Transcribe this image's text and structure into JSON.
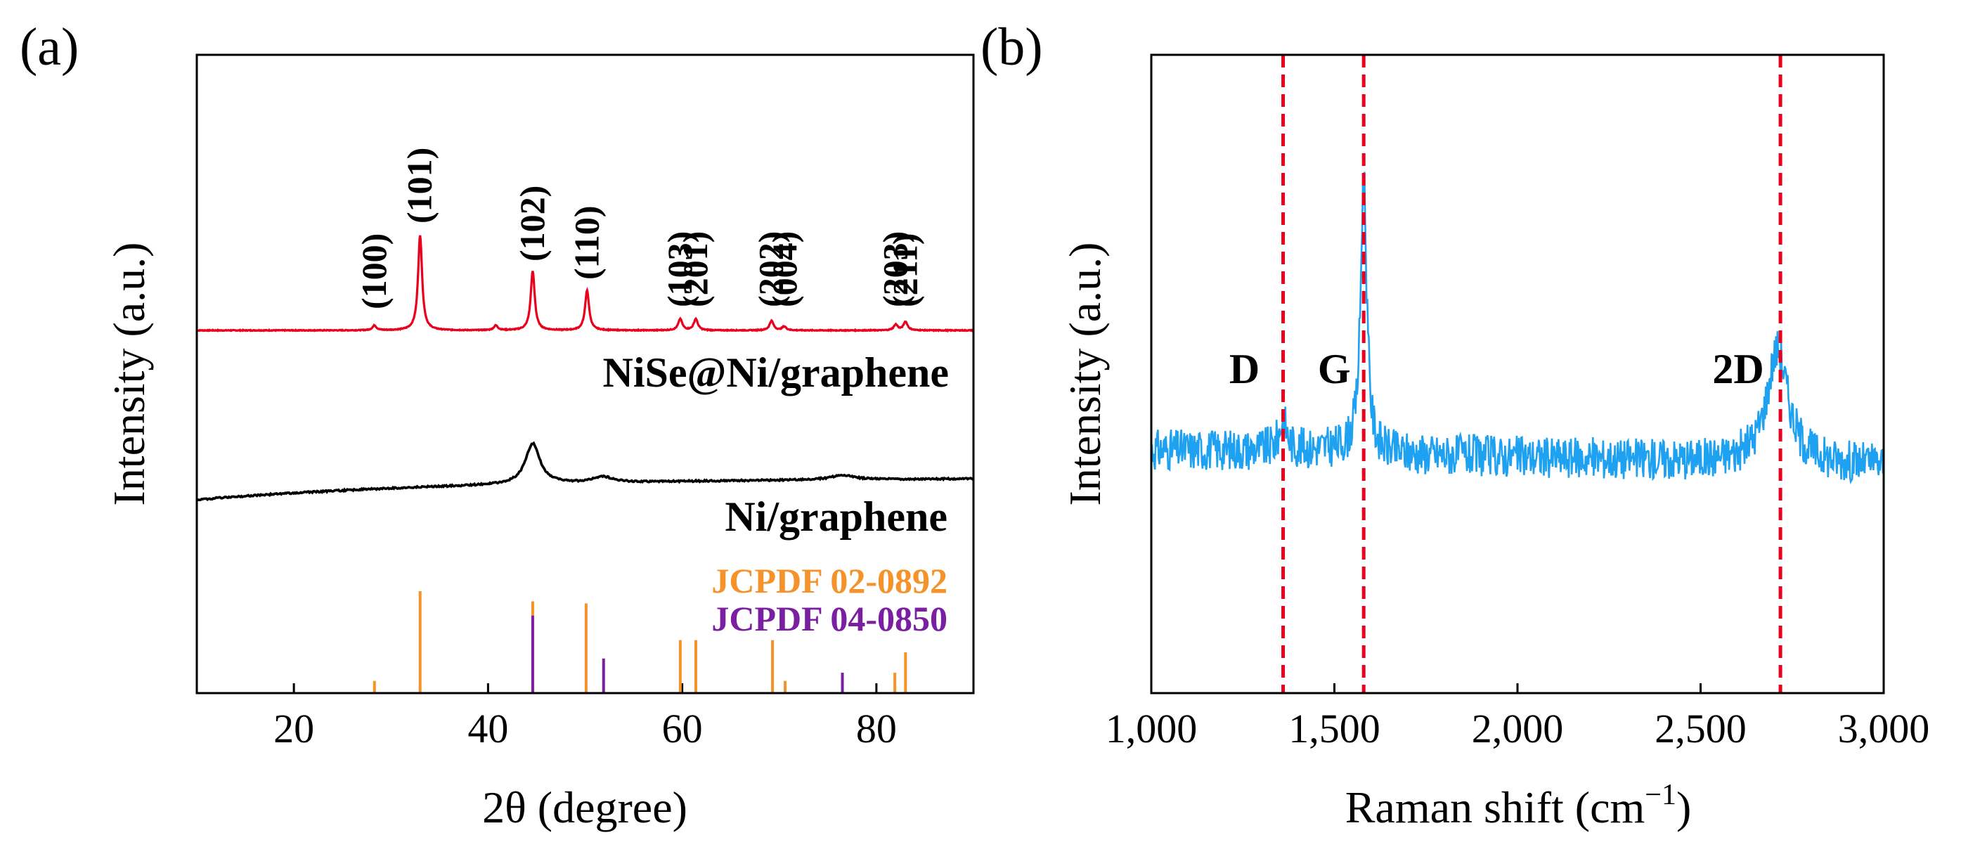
{
  "chart_data": [
    {
      "panel": "(a)",
      "type": "line",
      "xlabel": "2θ (degree)",
      "ylabel": "Intensity (a.u.)",
      "xlim": [
        10,
        90
      ],
      "xticks": [
        20,
        40,
        60,
        80
      ],
      "series": [
        {
          "name": "NiSe@Ni/graphene",
          "color": "#e8001c",
          "baseline": 0.92,
          "peaks": [
            {
              "x": 28.3,
              "h": 0.05,
              "w": 0.25
            },
            {
              "x": 33.0,
              "h": 1.0,
              "w": 0.25
            },
            {
              "x": 40.8,
              "h": 0.05,
              "w": 0.25
            },
            {
              "x": 44.6,
              "h": 0.62,
              "w": 0.25
            },
            {
              "x": 50.2,
              "h": 0.42,
              "w": 0.25
            },
            {
              "x": 59.8,
              "h": 0.12,
              "w": 0.25
            },
            {
              "x": 61.4,
              "h": 0.12,
              "w": 0.25
            },
            {
              "x": 69.2,
              "h": 0.1,
              "w": 0.25
            },
            {
              "x": 70.5,
              "h": 0.04,
              "w": 0.25
            },
            {
              "x": 82.0,
              "h": 0.06,
              "w": 0.25
            },
            {
              "x": 83.0,
              "h": 0.09,
              "w": 0.25
            }
          ]
        },
        {
          "name": "Ni/graphene",
          "color": "#000000",
          "peaks": [
            {
              "x": 44.6,
              "h": 0.55,
              "w": 0.9
            },
            {
              "x": 51.8,
              "h": 0.08,
              "w": 1.2
            },
            {
              "x": 76.5,
              "h": 0.06,
              "w": 1.5
            }
          ]
        }
      ],
      "reference_patterns": [
        {
          "name": "JCPDF 02-0892",
          "color": "#f5922a",
          "lines": [
            {
              "x": 28.3,
              "h": 0.12
            },
            {
              "x": 33.0,
              "h": 1.0
            },
            {
              "x": 44.6,
              "h": 0.9
            },
            {
              "x": 50.1,
              "h": 0.88
            },
            {
              "x": 59.8,
              "h": 0.52
            },
            {
              "x": 61.4,
              "h": 0.52
            },
            {
              "x": 69.3,
              "h": 0.52
            },
            {
              "x": 70.6,
              "h": 0.12
            },
            {
              "x": 81.9,
              "h": 0.2
            },
            {
              "x": 83.0,
              "h": 0.4
            }
          ]
        },
        {
          "name": "JCPDF 04-0850",
          "color": "#7b1fa2",
          "lines": [
            {
              "x": 44.6,
              "h": 0.76
            },
            {
              "x": 51.9,
              "h": 0.34
            },
            {
              "x": 76.5,
              "h": 0.2
            }
          ]
        }
      ],
      "peak_labels": [
        {
          "x": 28.3,
          "text": "(100)"
        },
        {
          "x": 33.0,
          "text": "(101)"
        },
        {
          "x": 44.6,
          "text": "(102)"
        },
        {
          "x": 50.2,
          "text": "(110)"
        },
        {
          "x": 59.8,
          "text": "(103)"
        },
        {
          "x": 61.4,
          "text": "(201)"
        },
        {
          "x": 69.2,
          "text": "(202)"
        },
        {
          "x": 70.6,
          "text": "(004)"
        },
        {
          "x": 82.0,
          "text": "(203)"
        },
        {
          "x": 83.0,
          "text": "(211)"
        }
      ]
    },
    {
      "panel": "(b)",
      "type": "line",
      "xlabel": "Raman shift (cm",
      "xlabel_sup": "−1",
      "xlabel_close": ")",
      "ylabel": "Intensity (a.u.)",
      "xlim": [
        1000,
        3000
      ],
      "xticks": [
        1000,
        1500,
        2000,
        2500,
        3000
      ],
      "xtick_labels": [
        "1,000",
        "1,500",
        "2,000",
        "2,500",
        "3,000"
      ],
      "series": [
        {
          "name": "Raman spectrum",
          "color": "#1ea1f0",
          "peaks": [
            {
              "x": 1360,
              "h": 0.08,
              "w": 12
            },
            {
              "x": 1580,
              "h": 0.72,
              "w": 10
            },
            {
              "x": 2710,
              "h": 0.3,
              "w": 35
            }
          ]
        }
      ],
      "reference_lines": [
        {
          "x": 1360,
          "label": "D"
        },
        {
          "x": 1580,
          "label": "G"
        },
        {
          "x": 2718,
          "label": "2D"
        }
      ],
      "line_color": "#e8001c"
    }
  ]
}
